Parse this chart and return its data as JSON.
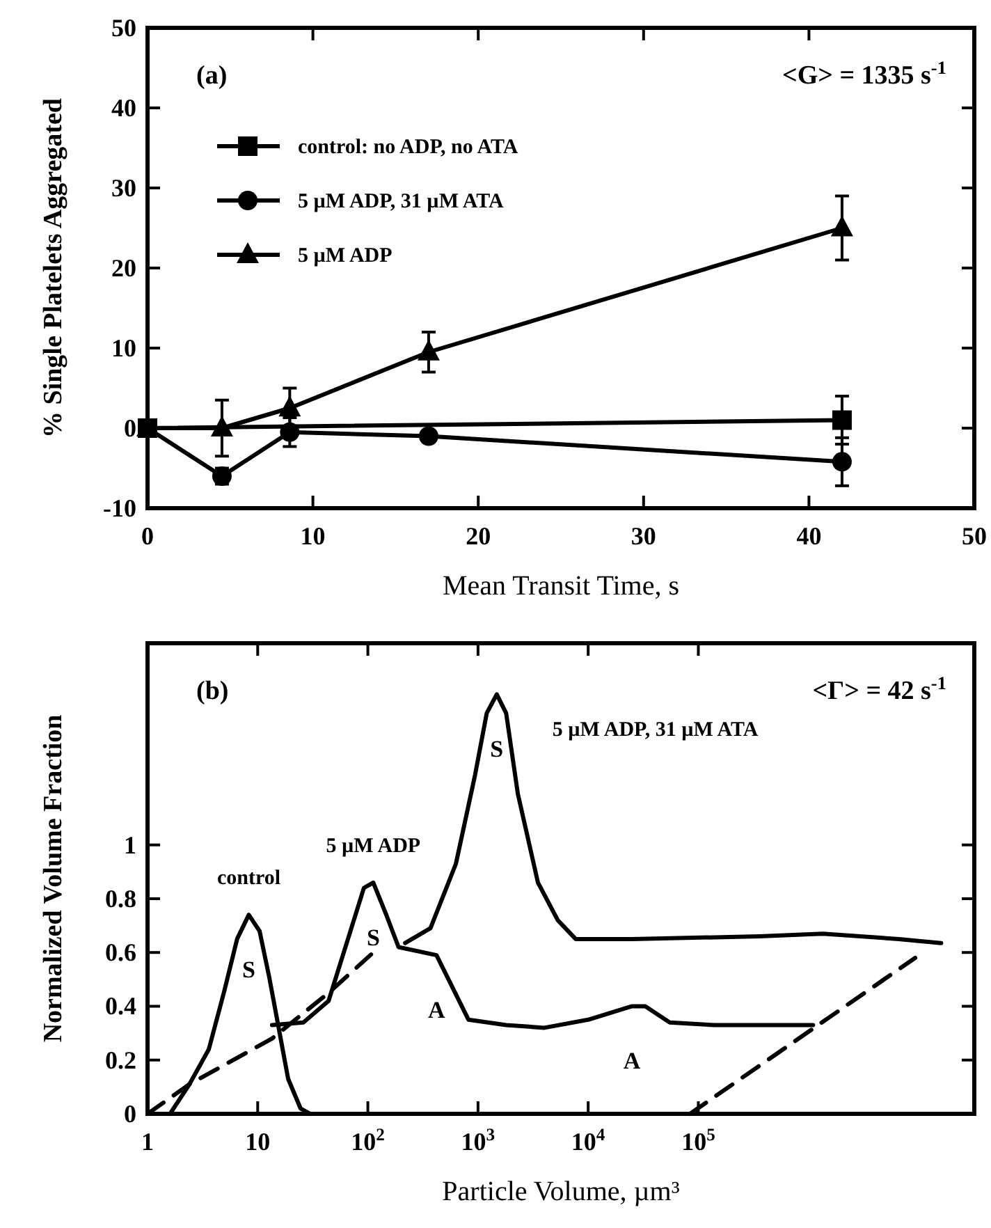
{
  "chart_data": [
    {
      "type": "line",
      "xlabel": "Mean Transit Time, s",
      "ylabel": "% Single Platelets Aggregated",
      "xlim": [
        0,
        50
      ],
      "xticks": [
        0,
        10,
        20,
        30,
        40,
        50
      ],
      "ylim": [
        -10,
        50
      ],
      "yticks": [
        -10,
        0,
        10,
        20,
        30,
        40,
        50
      ],
      "legend": "top left",
      "annotations": [
        "(a)",
        "<G> = 1335 s$^{-1}$"
      ],
      "series": [
        {
          "name": "control: no ADP, no ATA",
          "color": "#000000",
          "marker": "square",
          "x": [
            0,
            42
          ],
          "values": [
            0,
            1
          ],
          "errors": [
            null,
            3
          ]
        },
        {
          "name": "5 µM ADP, 31 µM ATA",
          "color": "#000000",
          "marker": "circle",
          "x": [
            0,
            4.5,
            8.6,
            17,
            42
          ],
          "values": [
            0,
            -6,
            -0.5,
            -1,
            -4.2
          ],
          "errors": [
            null,
            1,
            1.8,
            null,
            3
          ]
        },
        {
          "name": "5 µM ADP",
          "color": "#000000",
          "marker": "triangle",
          "x": [
            0,
            4.5,
            8.6,
            17,
            42
          ],
          "values": [
            0,
            0,
            2.5,
            9.5,
            25
          ],
          "errors": [
            null,
            3.5,
            2.5,
            2.5,
            4
          ]
        }
      ]
    },
    {
      "type": "line",
      "xlabel": "Particle Volume, µm³",
      "ylabel": "Normalized Volume Fraction",
      "log": "x",
      "xlim": [
        1,
        32000000
      ],
      "xticks": [
        1,
        10,
        {
          "value": 100,
          "label": "10$^{2}$"
        },
        {
          "value": 1000,
          "label": "10$^{3}$"
        },
        {
          "value": 10000,
          "label": "10$^{4}$"
        },
        {
          "value": 100000,
          "label": "10$^{5}$"
        }
      ],
      "ylim": [
        0,
        1.75
      ],
      "yticks": [
        0,
        0.2,
        0.4,
        0.6,
        0.8,
        1.0
      ],
      "annotations": [
        "(b)",
        "<Γ> = 42 s$^{-1}$",
        {
          "text": "S",
          "x": 8.3,
          "y": 0.74
        },
        {
          "text": "S",
          "x": 112,
          "y": 0.86
        },
        {
          "text": "S",
          "x": 1480,
          "y": 1.56
        },
        {
          "text": "A",
          "x": 420,
          "y": 0.59
        },
        {
          "text": "A",
          "x": 25000,
          "y": 0.4
        }
      ],
      "series": [
        {
          "name": "control",
          "color": "#000000",
          "line_style": "solid",
          "x": [
            1.6,
            2.4,
            3.6,
            5,
            6.5,
            8.3,
            10.4,
            12.7,
            15.5,
            18.9,
            24.5,
            30
          ],
          "values": [
            0,
            0.11,
            0.24,
            0.46,
            0.65,
            0.74,
            0.68,
            0.51,
            0.32,
            0.13,
            0.02,
            0
          ]
        },
        {
          "name": "5 µM ADP",
          "color": "#000000",
          "line_style": "solid",
          "x": [
            13.5,
            26,
            44,
            66,
            92,
            112,
            147,
            190,
            420,
            820,
            1800,
            4000,
            10000,
            25000,
            33000,
            55000,
            140000,
            1100000
          ],
          "values": [
            0.33,
            0.34,
            0.42,
            0.65,
            0.84,
            0.86,
            0.74,
            0.62,
            0.59,
            0.35,
            0.33,
            0.32,
            0.35,
            0.4,
            0.4,
            0.34,
            0.33,
            0.33
          ]
        },
        {
          "name": "5 µM ADP, 31 µM ATA",
          "color": "#000000",
          "line_style": "solid",
          "x": [
            218,
            370,
            630,
            940,
            1200,
            1480,
            1800,
            2300,
            3500,
            5300,
            7700,
            25000,
            360000,
            1350000,
            6600000,
            16000000
          ],
          "values": [
            0.635,
            0.69,
            0.93,
            1.26,
            1.49,
            1.56,
            1.49,
            1.19,
            0.86,
            0.72,
            0.65,
            0.65,
            0.66,
            0.67,
            0.65,
            0.635
          ]
        },
        {
          "color": "#000000",
          "line_style": "dashed",
          "x": [
            1,
            2.4,
            13.5,
            44,
            112
          ],
          "values": [
            0,
            0.11,
            0.28,
            0.45,
            0.6
          ]
        },
        {
          "color": "#000000",
          "line_style": "dashed",
          "x": [
            84000,
            9300000
          ],
          "values": [
            0,
            0.58
          ]
        }
      ]
    }
  ]
}
